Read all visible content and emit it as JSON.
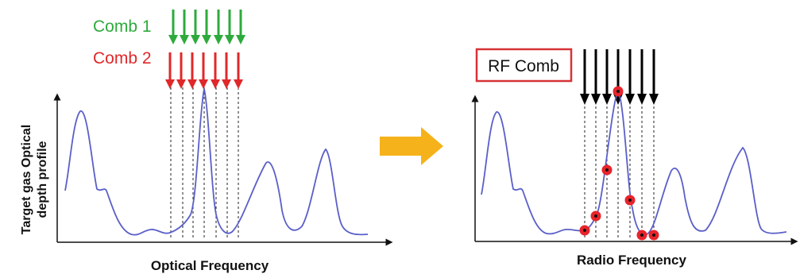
{
  "left_panel": {
    "y_label_line1": "Target gas Optical",
    "y_label_line2": "depth profile",
    "x_label": "Optical Frequency",
    "comb1_label": "Comb 1",
    "comb2_label": "Comb 2"
  },
  "right_panel": {
    "x_label": "Radio Frequency",
    "rf_label": "RF Comb"
  },
  "colors": {
    "comb1": "#2eaa3c",
    "comb2": "#e0282a",
    "rf_arrows": "#000000",
    "curve": "#5a5fc8",
    "transition_arrow": "#f6b21a",
    "rf_box_border": "#d63236",
    "marker_fill": "#e8232a"
  },
  "icons": {
    "transition": "right-arrow-icon"
  }
}
